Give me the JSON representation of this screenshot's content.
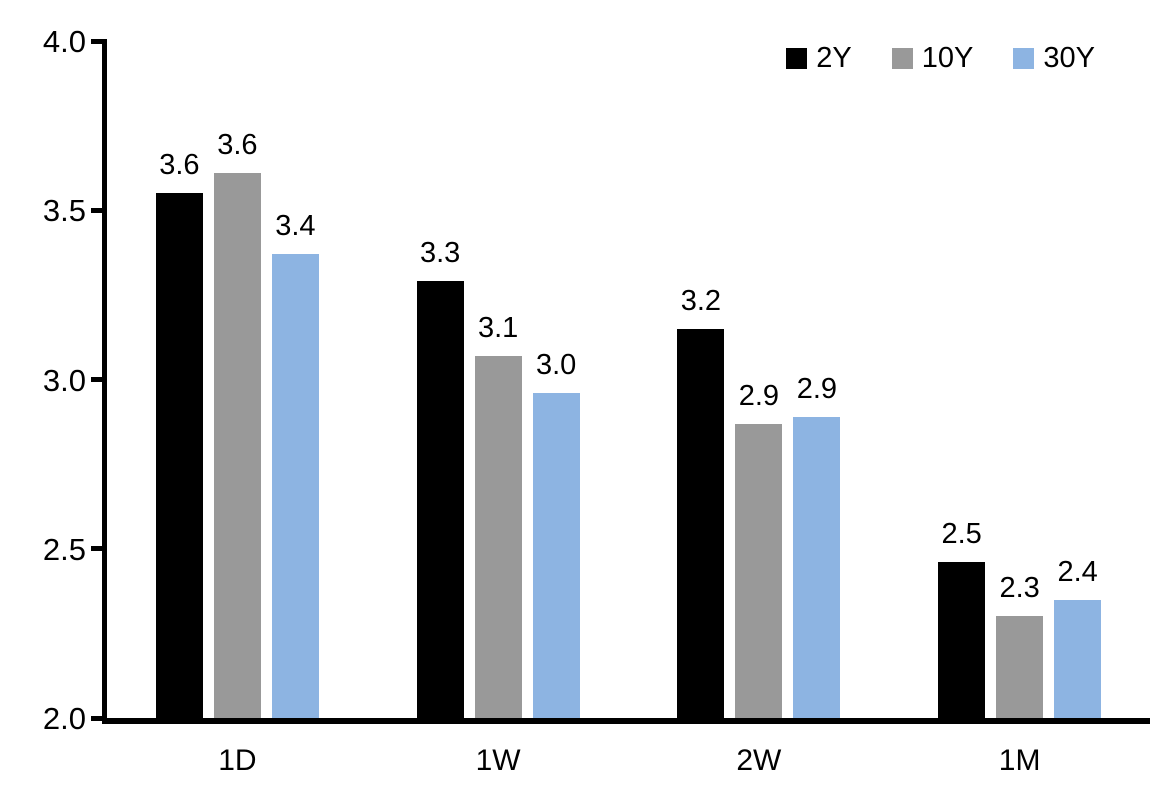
{
  "chart_data": {
    "type": "bar",
    "title": "",
    "categories": [
      "1D",
      "1W",
      "2W",
      "1M"
    ],
    "series": [
      {
        "name": "2Y",
        "color": "#000000",
        "values": [
          3.55,
          3.29,
          3.15,
          2.46
        ],
        "labels": [
          "3.6",
          "3.3",
          "3.2",
          "2.5"
        ]
      },
      {
        "name": "10Y",
        "color": "#999999",
        "values": [
          3.61,
          3.07,
          2.87,
          2.3
        ],
        "labels": [
          "3.6",
          "3.1",
          "2.9",
          "2.3"
        ]
      },
      {
        "name": "30Y",
        "color": "#8DB4E2",
        "values": [
          3.37,
          2.96,
          2.89,
          2.35
        ],
        "labels": [
          "3.4",
          "3.0",
          "2.9",
          "2.4"
        ]
      }
    ],
    "y_axis": {
      "min": 2.0,
      "max": 4.0,
      "tick_step": 0.5,
      "tick_labels": [
        "2.0",
        "2.5",
        "3.0",
        "3.5",
        "4.0"
      ]
    },
    "xlabel": "",
    "ylabel": "",
    "legend_position": "top-right",
    "grid": false,
    "axis_color": "#000000",
    "background_color": "#ffffff"
  }
}
